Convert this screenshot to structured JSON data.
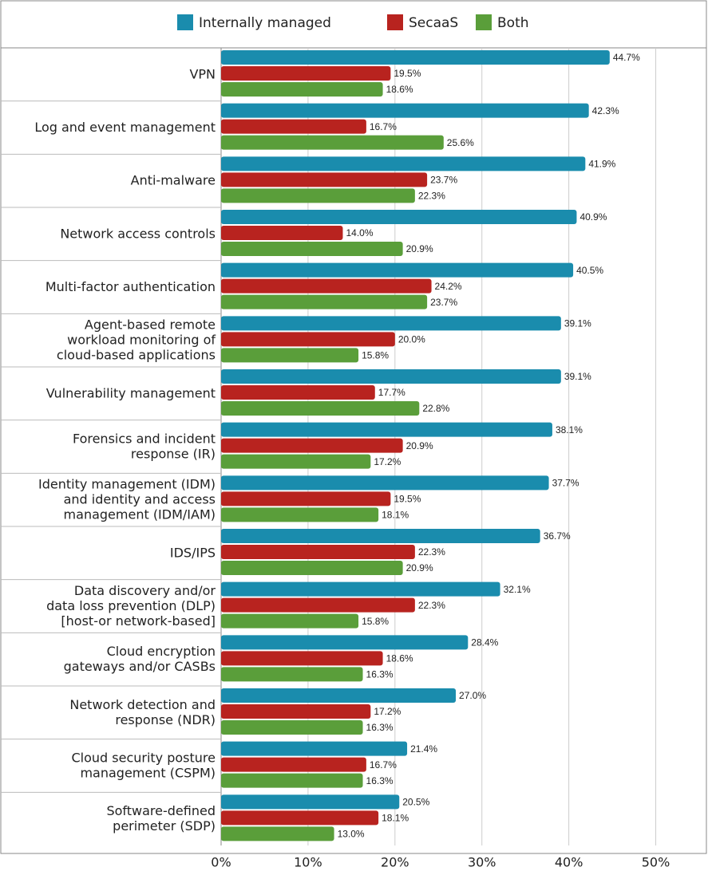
{
  "chart_data": {
    "type": "hbar",
    "categories": [
      "VPN",
      "Log and event management",
      "Anti-malware",
      "Network access controls",
      "Multi-factor authentication",
      "Agent-based remote\nworkload monitoring of\ncloud-based applications",
      "Vulnerability management",
      "Forensics and incident\nresponse (IR)",
      "Identity management (IDM)\nand identity and access\nmanagement (IDM/IAM)",
      "IDS/IPS",
      "Data discovery and/or\ndata loss prevention (DLP)\n[host-or network-based]",
      "Cloud encryption\ngateways and/or CASBs",
      "Network detection and\nresponse (NDR)",
      "Cloud security posture\nmanagement (CSPM)",
      "Software-defined\nperimeter (SDP)"
    ],
    "series": [
      {
        "name": "Internally managed",
        "color": "#1a8cad",
        "values": [
          44.7,
          42.3,
          41.9,
          40.9,
          40.5,
          39.1,
          39.1,
          38.1,
          37.7,
          36.7,
          32.1,
          28.4,
          27.0,
          21.4,
          20.5
        ],
        "value_labels": [
          "44.7%",
          "42.3%",
          "41.9%",
          "40.9%",
          "40.5%",
          "39.1%",
          "39.1%",
          "38.1%",
          "37.7%",
          "36.7%",
          "32.1%",
          "28.4%",
          "27.0%",
          "21.4%",
          "20.5%"
        ]
      },
      {
        "name": "SecaaS",
        "color": "#b8231f",
        "values": [
          19.5,
          16.7,
          23.7,
          14.0,
          24.2,
          20.0,
          17.7,
          20.9,
          19.5,
          22.3,
          22.3,
          18.6,
          17.2,
          16.7,
          18.1
        ],
        "value_labels": [
          "19.5%",
          "16.7%",
          "23.7%",
          "14.0%",
          "24.2%",
          "20.0%",
          "17.7%",
          "20.9%",
          "19.5%",
          "22.3%",
          "22.3%",
          "18.6%",
          "17.2%",
          "16.7%",
          "18.1%"
        ]
      },
      {
        "name": "Both",
        "color": "#5a9e3a",
        "values": [
          18.6,
          25.6,
          22.3,
          20.9,
          23.7,
          15.8,
          22.8,
          17.2,
          18.1,
          20.9,
          15.8,
          16.3,
          16.3,
          16.3,
          13.0
        ],
        "value_labels": [
          "18.6%",
          "25.6%",
          "22.3%",
          "20.9%",
          "23.7%",
          "15.8%",
          "22.8%",
          "17.2%",
          "18.1%",
          "20.9%",
          "15.8%",
          "16.3%",
          "16.3%",
          "16.3%",
          "13.0%"
        ]
      }
    ],
    "xlim": [
      0,
      55
    ],
    "xticks": [
      {
        "value": 0,
        "label": "0%"
      },
      {
        "value": 10,
        "label": "10%"
      },
      {
        "value": 20,
        "label": "20%"
      },
      {
        "value": 30,
        "label": "30%"
      },
      {
        "value": 40,
        "label": "40%"
      },
      {
        "value": 50,
        "label": "50%"
      }
    ],
    "grid": true,
    "legend": "top"
  }
}
